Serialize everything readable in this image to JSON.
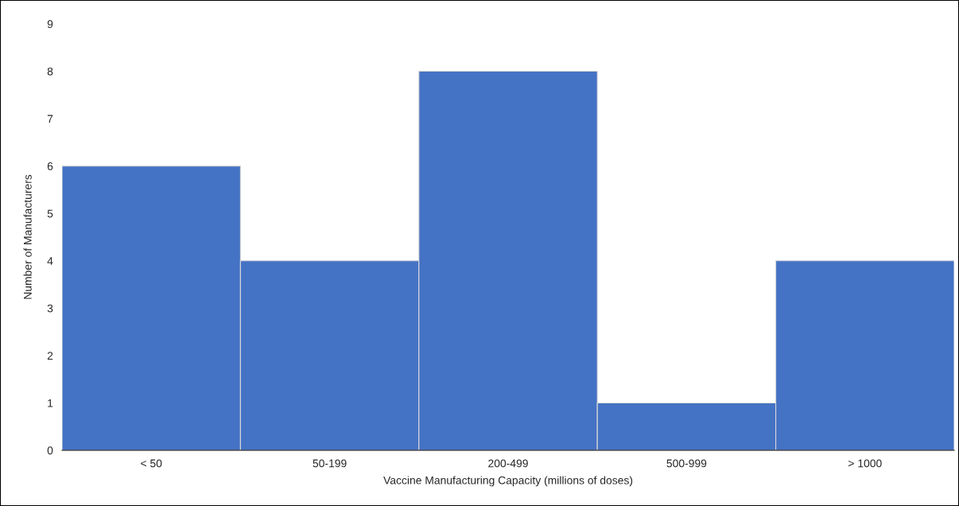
{
  "chart_data": {
    "type": "bar",
    "xlabel": "Vaccine Manufacturing Capacity (millions of doses)",
    "ylabel": "Number of Manufacturers",
    "categories": [
      "< 50",
      "50-199",
      "200-499",
      "500-999",
      "> 1000"
    ],
    "values": [
      6,
      4,
      8,
      1,
      4
    ],
    "color": "#4472c4",
    "ylim": [
      0,
      9
    ],
    "yticks": [
      0,
      1,
      2,
      3,
      4,
      5,
      6,
      7,
      8,
      9
    ],
    "grid": false,
    "legend": false
  }
}
